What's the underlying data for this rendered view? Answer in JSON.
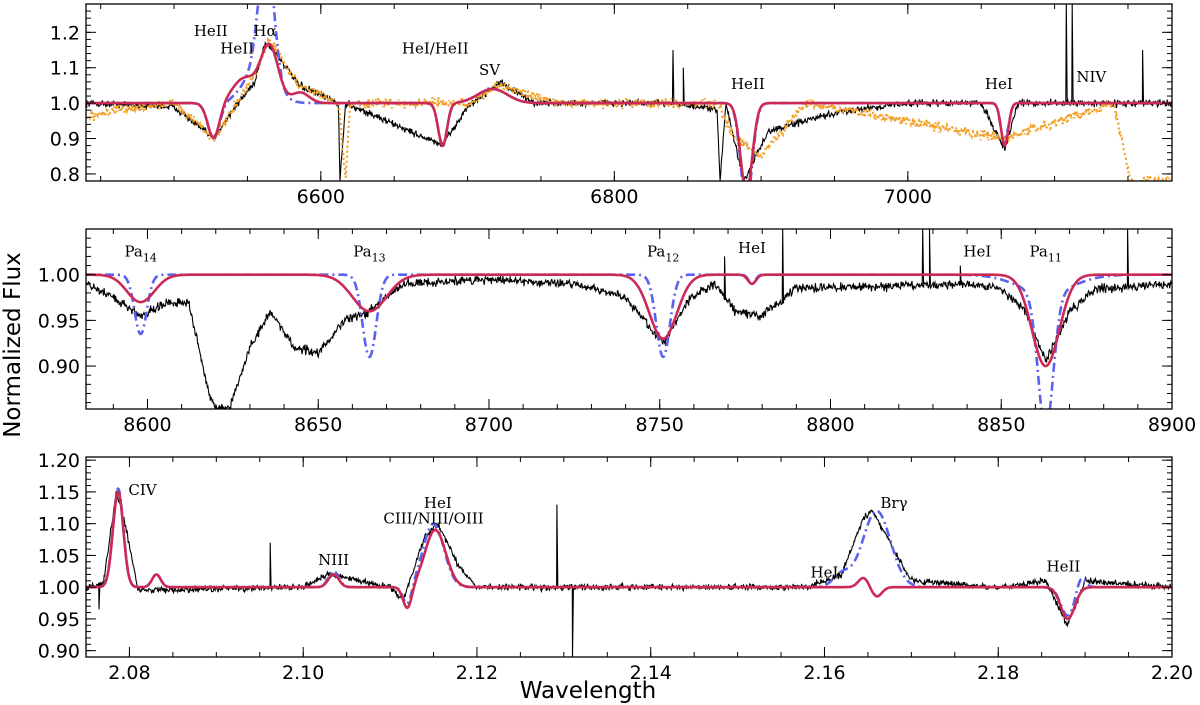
{
  "figure": {
    "ylabel": "Normalized Flux",
    "xlabel": "Wavelength",
    "colors": {
      "observed": "#000000",
      "observed_alt": "#f2a028",
      "model_blue": "#5c62ee",
      "model_red": "#cc2a55"
    }
  },
  "chart_data": [
    {
      "type": "line",
      "panel": "top",
      "xlim": [
        6440,
        7180
      ],
      "ylim": [
        0.78,
        1.28
      ],
      "xticks": [
        6600,
        6800,
        7000
      ],
      "xtick_labels": [
        "6600",
        "6800",
        "7000"
      ],
      "yticks": [
        0.8,
        0.9,
        1.0,
        1.1,
        1.2
      ],
      "ytick_labels": [
        "0.8",
        "0.9",
        "1.0",
        "1.1",
        "1.2"
      ],
      "series": [
        {
          "name": "observed",
          "style": "solid-black",
          "anchors": [
            [
              6440,
              1.0
            ],
            [
              6500,
              0.99
            ],
            [
              6527,
              0.9
            ],
            [
              6540,
              0.98
            ],
            [
              6555,
              1.06
            ],
            [
              6562,
              1.17
            ],
            [
              6568,
              1.15
            ],
            [
              6585,
              1.05
            ],
            [
              6612,
              1.0
            ],
            [
              6613,
              0.78
            ],
            [
              6617,
              1.0
            ],
            [
              6683,
              0.88
            ],
            [
              6700,
              0.99
            ],
            [
              6722,
              1.06
            ],
            [
              6745,
              1.0
            ],
            [
              6840,
              1.0
            ],
            [
              6870,
              0.98
            ],
            [
              6872,
              0.78
            ],
            [
              6876,
              1.0
            ],
            [
              6888,
              0.78
            ],
            [
              6905,
              0.92
            ],
            [
              6930,
              0.95
            ],
            [
              6960,
              0.98
            ],
            [
              7000,
              1.0
            ],
            [
              7050,
              1.0
            ],
            [
              7066,
              0.87
            ],
            [
              7075,
              1.0
            ],
            [
              7100,
              1.0
            ],
            [
              7180,
              1.0
            ]
          ],
          "spikes": [
            [
              6840,
              1.15
            ],
            [
              7108,
              1.28
            ],
            [
              7112,
              1.28
            ],
            [
              7160,
              1.15
            ],
            [
              6847,
              1.1
            ]
          ]
        },
        {
          "name": "observed (alt epoch)",
          "style": "dotted-orange",
          "anchors": [
            [
              6440,
              0.96
            ],
            [
              6460,
              0.98
            ],
            [
              6500,
              1.0
            ],
            [
              6527,
              0.9
            ],
            [
              6555,
              1.08
            ],
            [
              6565,
              1.18
            ],
            [
              6585,
              1.05
            ],
            [
              6612,
              1.0
            ],
            [
              6617,
              0.78
            ],
            [
              6620,
              1.0
            ],
            [
              6700,
              1.0
            ],
            [
              6722,
              1.05
            ],
            [
              6760,
              1.0
            ],
            [
              6870,
              1.0
            ],
            [
              6882,
              0.9
            ],
            [
              6900,
              0.85
            ],
            [
              6930,
              1.0
            ],
            [
              7066,
              0.9
            ],
            [
              7140,
              1.0
            ],
            [
              7152,
              0.78
            ]
          ]
        },
        {
          "name": "model (blue dash-dot)",
          "style": "dashdot-blue",
          "gaussians": [
            [
              6527,
              -0.1,
              4
            ],
            [
              6563,
              0.35,
              5
            ],
            [
              6558,
              0.1,
              10
            ],
            [
              6683,
              -0.12,
              3
            ],
            [
              6717,
              0.04,
              10
            ],
            [
              6890,
              -0.28,
              4
            ],
            [
              7066,
              -0.12,
              2.5
            ],
            [
              7067,
              0.02,
              1
            ]
          ]
        },
        {
          "name": "model (red solid)",
          "style": "solid-red",
          "gaussians": [
            [
              6527,
              -0.1,
              4
            ],
            [
              6548,
              0.07,
              8
            ],
            [
              6565,
              0.16,
              6
            ],
            [
              6586,
              0.03,
              6
            ],
            [
              6683,
              -0.12,
              3
            ],
            [
              6717,
              0.04,
              10
            ],
            [
              6890,
              -0.25,
              4
            ],
            [
              7066,
              -0.12,
              2.5
            ]
          ]
        }
      ],
      "annotations": [
        {
          "text": "HeII",
          "x": 6525,
          "y": 1.19
        },
        {
          "text": "HeII",
          "x": 6543,
          "y": 1.14
        },
        {
          "text": "Hα",
          "x": 6562,
          "y": 1.19
        },
        {
          "text": "HeI/HeII",
          "x": 6678,
          "y": 1.14
        },
        {
          "text": "SV",
          "x": 6715,
          "y": 1.08
        },
        {
          "text": "HeII",
          "x": 6891,
          "y": 1.04
        },
        {
          "text": "HeI",
          "x": 7062,
          "y": 1.04
        },
        {
          "text": "NIV",
          "x": 7125,
          "y": 1.06
        }
      ]
    },
    {
      "type": "line",
      "panel": "middle",
      "xlim": [
        8582,
        8900
      ],
      "ylim": [
        0.853,
        1.05
      ],
      "xticks": [
        8600,
        8650,
        8700,
        8750,
        8800,
        8850,
        8900
      ],
      "xtick_labels": [
        "8600",
        "8650",
        "8700",
        "8750",
        "8800",
        "8850",
        "8900"
      ],
      "yticks": [
        0.9,
        0.95,
        1.0
      ],
      "ytick_labels": [
        "0.90",
        "0.95",
        "1.00"
      ],
      "series": [
        {
          "name": "observed",
          "style": "solid-black",
          "anchors": [
            [
              8582,
              0.99
            ],
            [
              8590,
              0.975
            ],
            [
              8598,
              0.955
            ],
            [
              8606,
              0.97
            ],
            [
              8612,
              0.97
            ],
            [
              8618,
              0.87
            ],
            [
              8620,
              0.853
            ],
            [
              8624,
              0.853
            ],
            [
              8630,
              0.92
            ],
            [
              8636,
              0.96
            ],
            [
              8643,
              0.92
            ],
            [
              8650,
              0.915
            ],
            [
              8658,
              0.95
            ],
            [
              8665,
              0.96
            ],
            [
              8675,
              0.99
            ],
            [
              8700,
              0.995
            ],
            [
              8725,
              0.99
            ],
            [
              8740,
              0.975
            ],
            [
              8751,
              0.925
            ],
            [
              8758,
              0.97
            ],
            [
              8766,
              0.99
            ],
            [
              8772,
              0.96
            ],
            [
              8780,
              0.955
            ],
            [
              8790,
              0.985
            ],
            [
              8840,
              0.99
            ],
            [
              8850,
              0.985
            ],
            [
              8857,
              0.96
            ],
            [
              8863,
              0.905
            ],
            [
              8870,
              0.96
            ],
            [
              8878,
              0.985
            ],
            [
              8900,
              0.99
            ]
          ],
          "spikes": [
            [
              8769,
              1.02
            ],
            [
              8786,
              1.05
            ],
            [
              8827,
              1.05
            ],
            [
              8829,
              1.05
            ],
            [
              8838,
              1.01
            ],
            [
              8887,
              1.05
            ]
          ]
        },
        {
          "name": "model (blue dash-dot)",
          "style": "dashdot-blue",
          "gaussians": [
            [
              8598,
              -0.065,
              1.8
            ],
            [
              8665,
              -0.09,
              2
            ],
            [
              8751,
              -0.09,
              2
            ],
            [
              8777,
              -0.01,
              1
            ],
            [
              8863,
              -0.15,
              2.2
            ],
            [
              8863,
              -0.02,
              8
            ]
          ]
        },
        {
          "name": "model (red solid)",
          "style": "solid-red",
          "gaussians": [
            [
              8598,
              -0.03,
              4
            ],
            [
              8665,
              -0.04,
              5
            ],
            [
              8751,
              -0.07,
              4
            ],
            [
              8777,
              -0.01,
              1.2
            ],
            [
              8863,
              -0.1,
              4
            ]
          ]
        }
      ],
      "annotations": [
        {
          "text": "Pa",
          "sub": "14",
          "x": 8598,
          "y": 1.02
        },
        {
          "text": "Pa",
          "sub": "13",
          "x": 8665,
          "y": 1.02
        },
        {
          "text": "Pa",
          "sub": "12",
          "x": 8751,
          "y": 1.02
        },
        {
          "text": "HeI",
          "x": 8777,
          "y": 1.024
        },
        {
          "text": "HeI",
          "x": 8843,
          "y": 1.02
        },
        {
          "text": "Pa",
          "sub": "11",
          "x": 8863,
          "y": 1.02
        }
      ]
    },
    {
      "type": "line",
      "panel": "bottom",
      "xlim": [
        2.075,
        2.2
      ],
      "ylim": [
        0.89,
        1.205
      ],
      "xticks": [
        2.08,
        2.1,
        2.12,
        2.14,
        2.16,
        2.18,
        2.2
      ],
      "xtick_labels": [
        "2.08",
        "2.10",
        "2.12",
        "2.14",
        "2.16",
        "2.18",
        "2.20"
      ],
      "yticks": [
        0.9,
        0.95,
        1.0,
        1.05,
        1.1,
        1.15,
        1.2
      ],
      "ytick_labels": [
        "0.90",
        "0.95",
        "1.00",
        "1.05",
        "1.10",
        "1.15",
        "1.20"
      ],
      "series": [
        {
          "name": "observed",
          "style": "solid-black",
          "anchors": [
            [
              2.075,
              1.0
            ],
            [
              2.077,
              1.005
            ],
            [
              2.0785,
              1.15
            ],
            [
              2.0795,
              1.1
            ],
            [
              2.081,
              0.995
            ],
            [
              2.1,
              1.0
            ],
            [
              2.103,
              1.02
            ],
            [
              2.11,
              1.0
            ],
            [
              2.1115,
              0.98
            ],
            [
              2.114,
              1.08
            ],
            [
              2.1155,
              1.1
            ],
            [
              2.118,
              1.03
            ],
            [
              2.12,
              1.0
            ],
            [
              2.158,
              1.0
            ],
            [
              2.162,
              1.02
            ],
            [
              2.1645,
              1.11
            ],
            [
              2.1655,
              1.12
            ],
            [
              2.1675,
              1.07
            ],
            [
              2.17,
              1.01
            ],
            [
              2.18,
              1.0
            ],
            [
              2.1855,
              1.01
            ],
            [
              2.188,
              0.94
            ],
            [
              2.19,
              1.01
            ],
            [
              2.2,
              1.0
            ]
          ],
          "spikes": [
            [
              2.0962,
              1.07
            ],
            [
              2.1292,
              1.13
            ],
            [
              2.131,
              0.89
            ],
            [
              2.0765,
              0.965
            ]
          ]
        },
        {
          "name": "model (blue dash-dot)",
          "style": "dashdot-blue",
          "gaussians": [
            [
              2.0787,
              0.155,
              0.0006
            ],
            [
              2.0831,
              0.02,
              0.0005
            ],
            [
              2.1035,
              0.025,
              0.0006
            ],
            [
              2.112,
              -0.03,
              0.0005
            ],
            [
              2.115,
              0.1,
              0.0012
            ],
            [
              2.166,
              0.12,
              0.0016
            ],
            [
              2.162,
              0.02,
              0.001
            ],
            [
              2.188,
              -0.045,
              0.0008
            ],
            [
              2.1895,
              0.02,
              0.0005
            ]
          ]
        },
        {
          "name": "model (red solid)",
          "style": "solid-red",
          "gaussians": [
            [
              2.0787,
              0.15,
              0.0006
            ],
            [
              2.0831,
              0.02,
              0.0005
            ],
            [
              2.1035,
              0.02,
              0.0006
            ],
            [
              2.112,
              -0.035,
              0.0005
            ],
            [
              2.1152,
              0.09,
              0.0012
            ],
            [
              2.1645,
              0.015,
              0.0006
            ],
            [
              2.166,
              -0.015,
              0.0006
            ],
            [
              2.188,
              -0.05,
              0.0008
            ]
          ]
        }
      ],
      "annotations": [
        {
          "text": "CIV",
          "x": 2.0815,
          "y": 1.145
        },
        {
          "text": "NIII",
          "x": 2.1035,
          "y": 1.035
        },
        {
          "text": "HeI",
          "x": 2.1155,
          "y": 1.125
        },
        {
          "text": "CIII/NIII/OIII",
          "x": 2.115,
          "y": 1.1
        },
        {
          "text": "HeI",
          "x": 2.16,
          "y": 1.015
        },
        {
          "text": "Brγ",
          "x": 2.168,
          "y": 1.125
        },
        {
          "text": "HeII",
          "x": 2.1875,
          "y": 1.025
        }
      ]
    }
  ]
}
